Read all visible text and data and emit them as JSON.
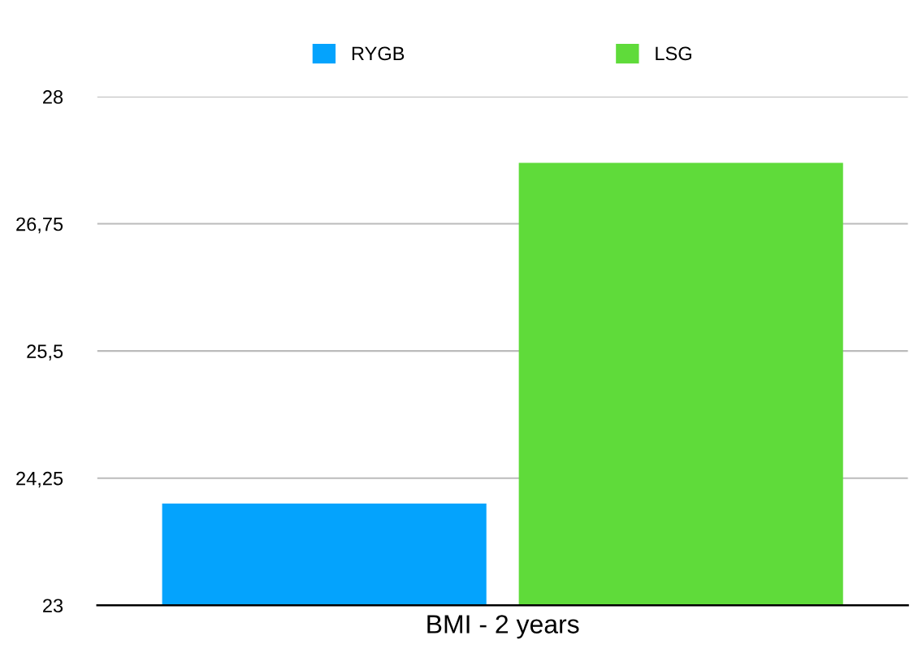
{
  "chart_data": {
    "type": "bar",
    "categories": [
      "BMI - 2 years"
    ],
    "series": [
      {
        "name": "RYGB",
        "color": "#04a3fd",
        "values": [
          24.0
        ]
      },
      {
        "name": "LSG",
        "color": "#5fdb3a",
        "values": [
          27.35
        ]
      }
    ],
    "ylim": [
      23,
      28
    ],
    "yticks": [
      23,
      {
        "value": 24.25,
        "label": "24,25"
      },
      {
        "value": 25.5,
        "label": "25,5"
      },
      {
        "value": 26.75,
        "label": "26,75"
      },
      28
    ],
    "grid": "y",
    "legend": "top"
  }
}
